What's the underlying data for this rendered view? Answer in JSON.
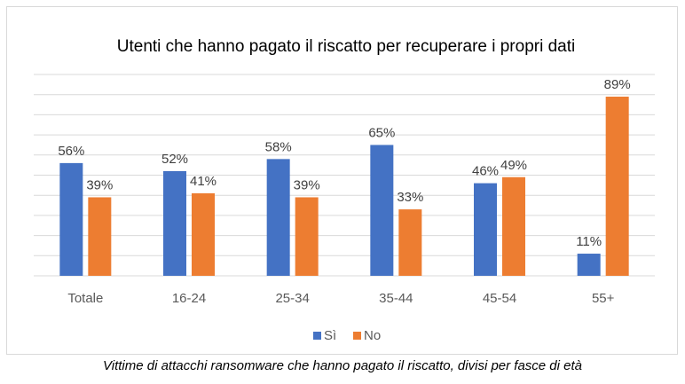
{
  "chart_data": {
    "type": "bar",
    "title": "Utenti che hanno pagato il riscatto per recuperare i propri dati",
    "categories": [
      "Totale",
      "16-24",
      "25-34",
      "35-44",
      "45-54",
      "55+"
    ],
    "series": [
      {
        "name": "Sì",
        "color": "#4472C4",
        "values": [
          56,
          52,
          58,
          65,
          46,
          11
        ]
      },
      {
        "name": "No",
        "color": "#ED7D31",
        "values": [
          39,
          41,
          39,
          33,
          49,
          89
        ]
      }
    ],
    "value_suffix": "%",
    "ylim": [
      0,
      100
    ],
    "gridlines": true,
    "legend_position": "bottom"
  },
  "caption": "Vittime di attacchi ransomware che hanno pagato il riscatto, divisi per fasce di età"
}
